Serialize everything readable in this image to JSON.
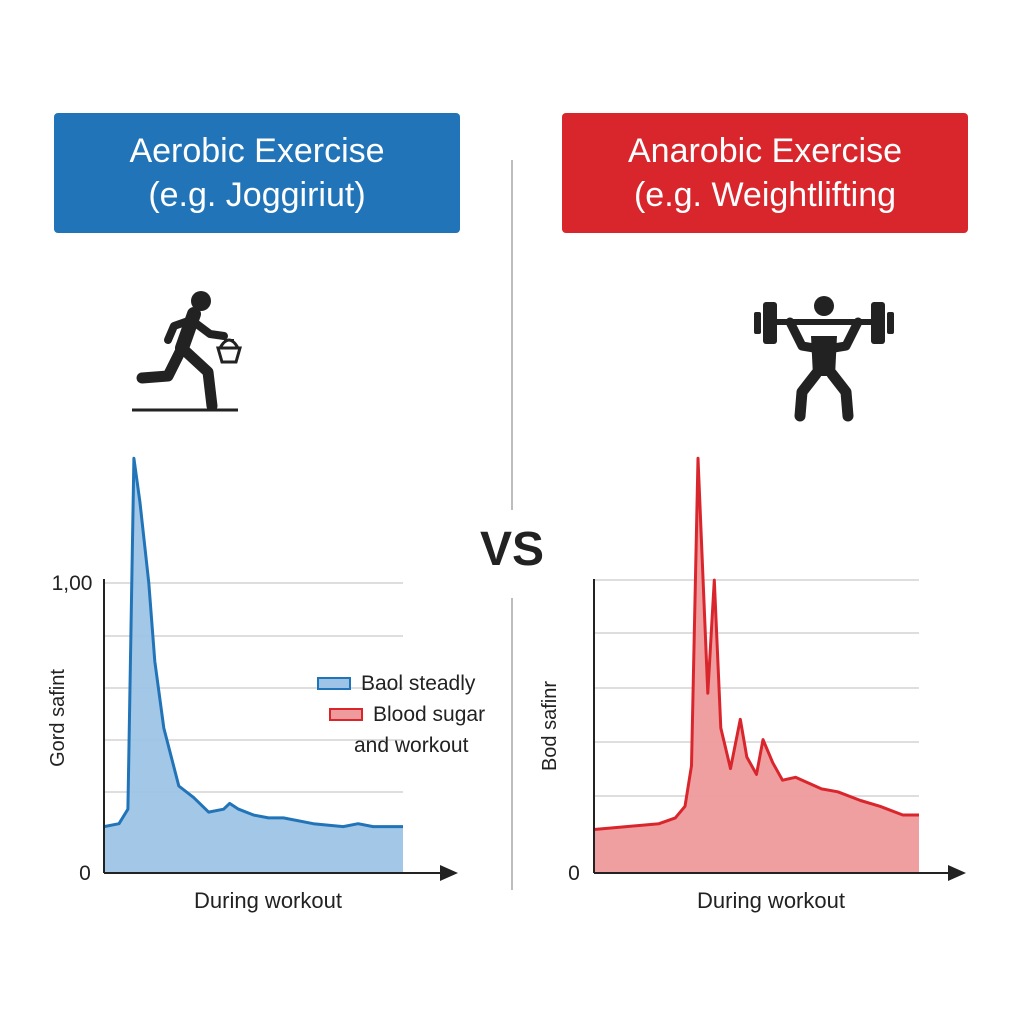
{
  "colors": {
    "blue": "#2274b8",
    "blue_fill": "#9dc4e6",
    "red": "#d9262d",
    "red_fill": "#ef9a9c",
    "axis": "#222222",
    "grid": "#d4d4d4"
  },
  "left_panel": {
    "title_line1": "Aerobic Exercise",
    "title_line2": "(e.g. Joggiriut)",
    "icon": "runner-icon"
  },
  "right_panel": {
    "title_line1": "Anarobic Exercise",
    "title_line2": "(e.g. Weightlifting",
    "icon": "weightlifter-icon"
  },
  "vs_label": "VS",
  "legend": {
    "item1": "Baol steadly",
    "item2_line1": "Blood sugar",
    "item2_line2": "and workout"
  },
  "chart_data": [
    {
      "type": "area",
      "title": "Aerobic Exercise (e.g. Joggiriut)",
      "xlabel": "During workout",
      "ylabel": "Gord safint",
      "ytick_top": "1,00",
      "ytick_bottom": "0",
      "xlim": [
        0,
        100
      ],
      "ylim": [
        0,
        1.0
      ],
      "x": [
        0,
        5,
        8,
        10,
        12,
        15,
        17,
        20,
        25,
        30,
        35,
        40,
        42,
        45,
        50,
        55,
        60,
        70,
        80,
        85,
        90,
        100
      ],
      "y": [
        0.16,
        0.17,
        0.22,
        1.43,
        1.28,
        1.0,
        0.73,
        0.5,
        0.3,
        0.26,
        0.21,
        0.22,
        0.24,
        0.22,
        0.2,
        0.19,
        0.19,
        0.17,
        0.16,
        0.17,
        0.16,
        0.16
      ],
      "legend": [
        "Baol steadly",
        "Blood sugar and workout"
      ]
    },
    {
      "type": "area",
      "title": "Anarobic Exercise (e.g. Weightlifting",
      "xlabel": "During workout",
      "ylabel": "Bod safinr",
      "ytick_bottom": "0",
      "xlim": [
        0,
        100
      ],
      "ylim": [
        0,
        1.0
      ],
      "x": [
        0,
        10,
        20,
        25,
        28,
        30,
        32,
        35,
        37,
        39,
        42,
        45,
        47,
        50,
        52,
        55,
        58,
        62,
        70,
        75,
        82,
        88,
        95,
        100
      ],
      "y": [
        0.15,
        0.16,
        0.17,
        0.19,
        0.23,
        0.37,
        1.43,
        0.62,
        1.01,
        0.5,
        0.36,
        0.53,
        0.4,
        0.34,
        0.46,
        0.38,
        0.32,
        0.33,
        0.29,
        0.28,
        0.25,
        0.23,
        0.2,
        0.2
      ]
    }
  ]
}
